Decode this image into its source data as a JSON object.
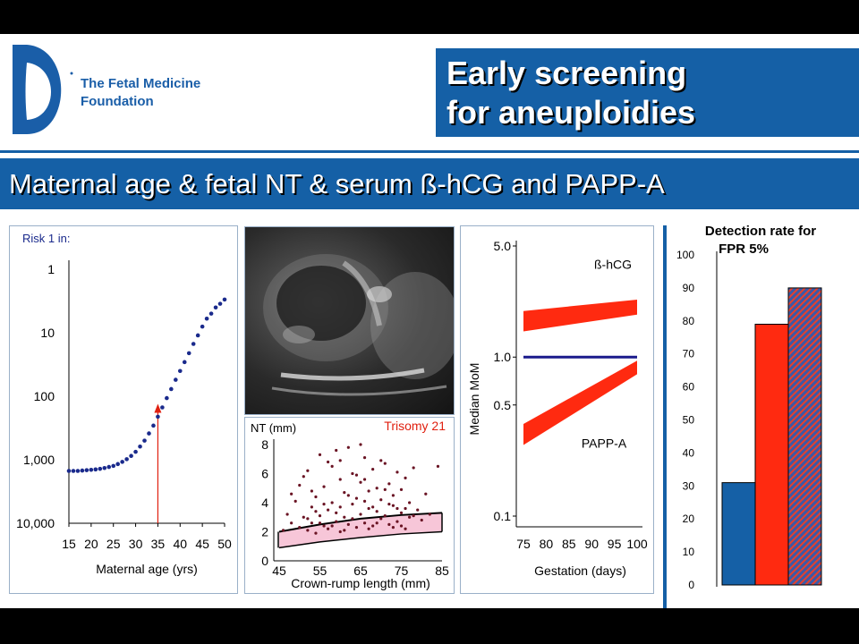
{
  "header": {
    "logo_line1": "The Fetal Medicine",
    "logo_line2": "Foundation",
    "title_line1": "Early screening",
    "title_line2": "for aneuploidies",
    "subtitle": "Maternal age & fetal NT & serum ß-hCG and PAPP-A",
    "brand_color": "#1560a6"
  },
  "ultrasound_image": {
    "description_icon": "ultrasound-scan"
  },
  "chart_data": [
    {
      "type": "scatter",
      "ylabel": "Risk 1 in:",
      "xlabel": "Maternal age (yrs)",
      "x_ticks": [
        "15",
        "20",
        "25",
        "30",
        "35",
        "40",
        "45",
        "50"
      ],
      "y_ticks": [
        "1",
        "10",
        "100",
        "1,000",
        "10,000"
      ],
      "y_scale": "log-reversed",
      "ylim": [
        1,
        10000
      ],
      "xlim": [
        15,
        50
      ],
      "color": "#1a2a8c",
      "marker_age": 35,
      "marker_color": "#e02010",
      "x": [
        15,
        16,
        17,
        18,
        19,
        20,
        21,
        22,
        23,
        24,
        25,
        26,
        27,
        28,
        29,
        30,
        31,
        32,
        33,
        34,
        35,
        36,
        37,
        38,
        39,
        40,
        41,
        42,
        43,
        44,
        45,
        46,
        47,
        48,
        49,
        50
      ],
      "y": [
        1500,
        1500,
        1500,
        1480,
        1460,
        1440,
        1420,
        1390,
        1350,
        1300,
        1250,
        1170,
        1080,
        980,
        870,
        750,
        620,
        500,
        385,
        290,
        210,
        150,
        107,
        77,
        55,
        40,
        29,
        21,
        15,
        11,
        8,
        6,
        5,
        4,
        3.5,
        3
      ]
    },
    {
      "type": "scatter",
      "title": "Trisomy 21",
      "ylabel": "NT (mm)",
      "xlabel": "Crown-rump length (mm)",
      "x_ticks": [
        "45",
        "55",
        "65",
        "75",
        "85"
      ],
      "y_ticks": [
        "0",
        "2",
        "4",
        "6",
        "8"
      ],
      "xlim": [
        45,
        85
      ],
      "ylim": [
        0,
        8
      ],
      "band_lower": {
        "x": [
          45,
          55,
          65,
          75,
          85
        ],
        "y": [
          0.9,
          1.3,
          1.6,
          1.85,
          2.0
        ]
      },
      "band_upper": {
        "x": [
          45,
          55,
          65,
          75,
          85
        ],
        "y": [
          2.0,
          2.5,
          2.9,
          3.15,
          3.3
        ]
      },
      "band_color": "#f7c6d8",
      "point_color": "#6a1424",
      "points": [
        [
          46,
          2.1
        ],
        [
          47,
          3.2
        ],
        [
          48,
          2.6
        ],
        [
          49,
          4.1
        ],
        [
          50,
          2.3
        ],
        [
          50,
          5.2
        ],
        [
          51,
          3.0
        ],
        [
          52,
          2.1
        ],
        [
          52,
          6.2
        ],
        [
          53,
          3.7
        ],
        [
          53,
          2.6
        ],
        [
          54,
          4.4
        ],
        [
          54,
          1.9
        ],
        [
          55,
          3.1
        ],
        [
          55,
          7.3
        ],
        [
          56,
          2.4
        ],
        [
          56,
          5.1
        ],
        [
          57,
          3.5
        ],
        [
          57,
          2.2
        ],
        [
          58,
          6.5
        ],
        [
          58,
          4.0
        ],
        [
          59,
          2.7
        ],
        [
          59,
          3.3
        ],
        [
          60,
          5.6
        ],
        [
          60,
          2.0
        ],
        [
          61,
          4.7
        ],
        [
          61,
          3.0
        ],
        [
          62,
          7.8
        ],
        [
          62,
          2.5
        ],
        [
          63,
          3.9
        ],
        [
          63,
          6.0
        ],
        [
          64,
          2.3
        ],
        [
          64,
          4.3
        ],
        [
          65,
          3.2
        ],
        [
          65,
          5.4
        ],
        [
          66,
          2.6
        ],
        [
          66,
          7.1
        ],
        [
          67,
          3.6
        ],
        [
          67,
          4.8
        ],
        [
          68,
          2.4
        ],
        [
          68,
          6.3
        ],
        [
          69,
          3.4
        ],
        [
          69,
          5.0
        ],
        [
          70,
          2.9
        ],
        [
          70,
          4.2
        ],
        [
          71,
          6.7
        ],
        [
          71,
          3.1
        ],
        [
          72,
          2.5
        ],
        [
          72,
          5.3
        ],
        [
          73,
          3.8
        ],
        [
          73,
          4.5
        ],
        [
          74,
          2.7
        ],
        [
          74,
          6.1
        ],
        [
          75,
          3.3
        ],
        [
          75,
          4.9
        ],
        [
          76,
          2.2
        ],
        [
          76,
          5.7
        ],
        [
          77,
          3.0
        ],
        [
          77,
          4.0
        ],
        [
          78,
          6.4
        ],
        [
          79,
          3.5
        ],
        [
          80,
          2.8
        ],
        [
          81,
          4.6
        ],
        [
          82,
          3.2
        ],
        [
          84,
          6.5
        ],
        [
          48,
          4.6
        ],
        [
          51,
          5.8
        ],
        [
          54,
          3.4
        ],
        [
          57,
          6.8
        ],
        [
          60,
          3.7
        ],
        [
          63,
          2.9
        ],
        [
          66,
          4.1
        ],
        [
          69,
          2.6
        ],
        [
          72,
          3.9
        ],
        [
          75,
          2.4
        ],
        [
          78,
          3.1
        ],
        [
          52,
          2.9
        ],
        [
          58,
          2.4
        ],
        [
          64,
          5.9
        ],
        [
          70,
          6.9
        ],
        [
          56,
          3.9
        ],
        [
          62,
          4.5
        ],
        [
          68,
          3.7
        ],
        [
          74,
          3.6
        ],
        [
          59,
          7.6
        ],
        [
          65,
          8.0
        ],
        [
          61,
          2.1
        ],
        [
          67,
          2.2
        ],
        [
          73,
          2.3
        ],
        [
          53,
          4.8
        ],
        [
          55,
          2.6
        ],
        [
          60,
          6.9
        ],
        [
          66,
          5.6
        ],
        [
          71,
          4.9
        ],
        [
          76,
          3.6
        ]
      ]
    },
    {
      "type": "area",
      "ylabel": "Median MoM",
      "xlabel": "Gestation (days)",
      "x_ticks": [
        "75",
        "80",
        "85",
        "90",
        "95",
        "100"
      ],
      "y_ticks": [
        "5.0",
        "1.0",
        "0.5",
        "0.1"
      ],
      "y_scale": "log",
      "xlim": [
        75,
        100
      ],
      "ylim": [
        0.1,
        5.0
      ],
      "reference_line": {
        "y": 1.0,
        "color": "#1a1a8c"
      },
      "band_color": "#ff2a10",
      "series": [
        {
          "name": "ß-hCG",
          "x": [
            75,
            100
          ],
          "lower": [
            1.45,
            1.85
          ],
          "upper": [
            1.95,
            2.3
          ]
        },
        {
          "name": "PAPP-A",
          "x": [
            75,
            100
          ],
          "lower": [
            0.28,
            0.78
          ],
          "upper": [
            0.38,
            0.95
          ]
        }
      ]
    },
    {
      "type": "bar",
      "title_line1": "Detection rate for",
      "title_line2": "FPR 5%",
      "y_ticks": [
        "100",
        "90",
        "80",
        "70",
        "60",
        "50",
        "40",
        "30",
        "20",
        "10",
        "0"
      ],
      "ylim": [
        0,
        100
      ],
      "values": [
        31,
        79,
        90
      ],
      "colors": [
        "#1560a6",
        "#ff2a10",
        "hatched"
      ]
    }
  ]
}
